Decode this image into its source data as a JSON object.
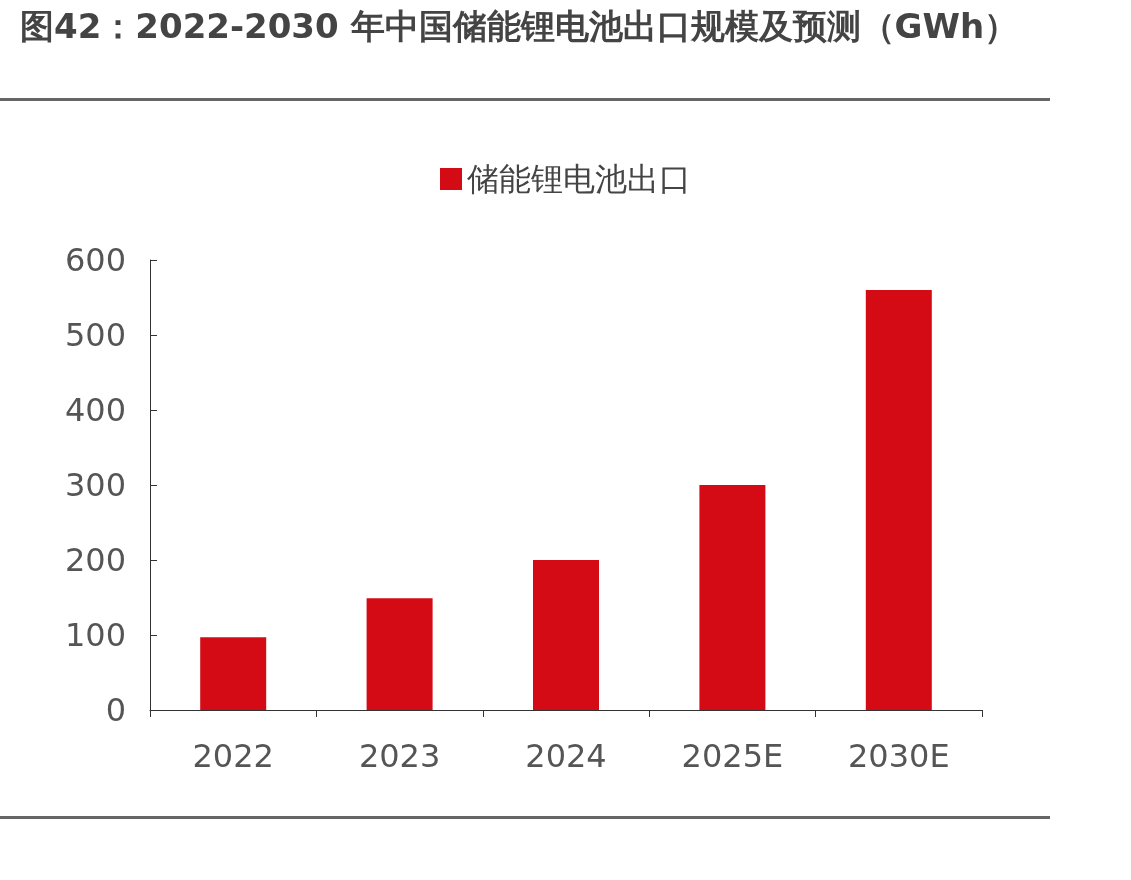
{
  "chart_data": {
    "type": "bar",
    "title": "图42：2022-2030 年中国储能锂电池出口规模及预测（GWh）",
    "categories": [
      "2022",
      "2023",
      "2024",
      "2025E",
      "2030E"
    ],
    "series": [
      {
        "name": "储能锂电池出口",
        "color": "#d40b15",
        "values": [
          97,
          149,
          200,
          300,
          560
        ]
      }
    ],
    "ylim": [
      0,
      600
    ],
    "yticks": [
      0,
      100,
      200,
      300,
      400,
      500,
      600
    ],
    "grid": false,
    "legend": "top"
  }
}
